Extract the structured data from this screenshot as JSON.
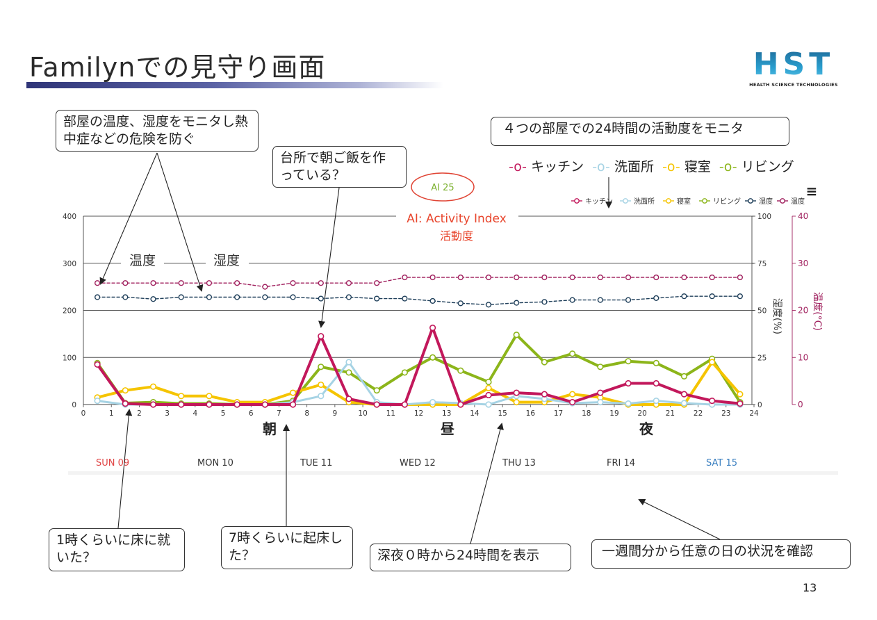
{
  "slide": {
    "title": "Familynでの見守り画面",
    "logo_main": "HST",
    "logo_sub": "HEALTH SCIENCE TECHNOLOGIES",
    "page_number": "13"
  },
  "callouts": {
    "temp_humidity": "部屋の温度、湿度をモニタし熱中症などの危険を防ぐ",
    "breakfast": "台所で朝ご飯を作っている？",
    "rooms_activity": "４つの部屋での24時間の活動度をモニタ",
    "ai_bubble": "AI 25",
    "bed_1am": "1時くらいに床に就いた？",
    "wake_7am": "7時くらいに起床した？",
    "midnight_24h": "深夜０時から24時間を表示",
    "week_view": "一週間分から任意の日の状況を確認"
  },
  "room_legend": [
    {
      "label": "キッチン",
      "color": "#c2185b"
    },
    {
      "label": "洗面所",
      "color": "#a6d3e4"
    },
    {
      "label": "寝室",
      "color": "#f5c400"
    },
    {
      "label": "リビング",
      "color": "#8cb51a"
    }
  ],
  "chart_data": {
    "type": "line",
    "title": "AI: Activity Index",
    "subtitle": "活動度",
    "annotations": {
      "temperature": "温度",
      "humidity": "湿度",
      "morning": "朝",
      "noon": "昼",
      "night": "夜"
    },
    "menu_glyph": "≡",
    "x": [
      0.5,
      1.5,
      2.5,
      3.5,
      4.5,
      5.5,
      6.5,
      7.5,
      8.5,
      9.5,
      10.5,
      11.5,
      12.5,
      13.5,
      14.5,
      15.5,
      16.5,
      17.5,
      18.5,
      19.5,
      20.5,
      21.5,
      22.5,
      23.5
    ],
    "x_ticks": [
      "0",
      "1",
      "2",
      "3",
      "4",
      "5",
      "6",
      "7",
      "8",
      "9",
      "10",
      "11",
      "12",
      "13",
      "14",
      "15",
      "16",
      "17",
      "18",
      "19",
      "20",
      "21",
      "22",
      "23",
      "24"
    ],
    "xlim": [
      0,
      24
    ],
    "ylim": [
      0,
      400
    ],
    "y_ticks": [
      "0",
      "100",
      "200",
      "300",
      "400"
    ],
    "y2": {
      "label": "湿度(%)",
      "ticks": [
        "0",
        "25",
        "50",
        "75",
        "100"
      ],
      "range": [
        0,
        100
      ]
    },
    "y3": {
      "label": "温度(°C)",
      "ticks": [
        "0",
        "10",
        "20",
        "30",
        "40"
      ],
      "range": [
        0,
        40
      ],
      "color": "#a0205e"
    },
    "grid": true,
    "legend_position": "top-right",
    "series": [
      {
        "name": "キッチン",
        "color": "#c2185b",
        "marker": "circle",
        "dashed": false,
        "width": 4,
        "values": [
          85,
          2,
          0,
          0,
          0,
          0,
          0,
          0,
          145,
          12,
          0,
          0,
          163,
          0,
          20,
          25,
          22,
          5,
          25,
          45,
          45,
          22,
          8,
          2
        ]
      },
      {
        "name": "洗面所",
        "color": "#a6d3e4",
        "marker": "circle",
        "dashed": false,
        "width": 3,
        "values": [
          8,
          0,
          0,
          0,
          0,
          0,
          0,
          5,
          18,
          90,
          5,
          0,
          5,
          3,
          0,
          18,
          12,
          3,
          5,
          2,
          8,
          3,
          0,
          0
        ]
      },
      {
        "name": "寝室",
        "color": "#f5c400",
        "marker": "circle",
        "dashed": false,
        "width": 4,
        "values": [
          15,
          30,
          38,
          18,
          18,
          5,
          5,
          25,
          42,
          5,
          0,
          0,
          0,
          0,
          35,
          5,
          5,
          22,
          15,
          0,
          0,
          0,
          90,
          22
        ]
      },
      {
        "name": "リビング",
        "color": "#8cb51a",
        "marker": "circle",
        "dashed": false,
        "width": 4,
        "values": [
          88,
          3,
          5,
          2,
          2,
          0,
          0,
          8,
          80,
          68,
          30,
          68,
          100,
          72,
          48,
          148,
          90,
          108,
          80,
          92,
          88,
          60,
          97,
          5
        ]
      },
      {
        "name": "湿度",
        "color": "#1f3f5a",
        "marker": "circle-open",
        "dashed": true,
        "width": 1.4,
        "values": [
          228,
          228,
          224,
          228,
          228,
          228,
          228,
          228,
          225,
          228,
          225,
          225,
          220,
          215,
          212,
          216,
          218,
          222,
          222,
          222,
          226,
          230,
          230,
          230
        ]
      },
      {
        "name": "温度",
        "color": "#a0205e",
        "marker": "circle-open",
        "dashed": true,
        "width": 1.4,
        "values": [
          258,
          258,
          258,
          258,
          258,
          258,
          250,
          258,
          258,
          258,
          258,
          270,
          270,
          270,
          270,
          270,
          270,
          270,
          270,
          270,
          270,
          270,
          270,
          270
        ]
      }
    ]
  },
  "days": [
    {
      "label": "SUN 09",
      "color": "#e04444"
    },
    {
      "label": "MON 10",
      "color": "#333333"
    },
    {
      "label": "TUE 11",
      "color": "#333333"
    },
    {
      "label": "WED 12",
      "color": "#333333"
    },
    {
      "label": "THU 13",
      "color": "#333333"
    },
    {
      "label": "FRI 14",
      "color": "#333333"
    },
    {
      "label": "SAT 15",
      "color": "#3a7fc0"
    }
  ]
}
